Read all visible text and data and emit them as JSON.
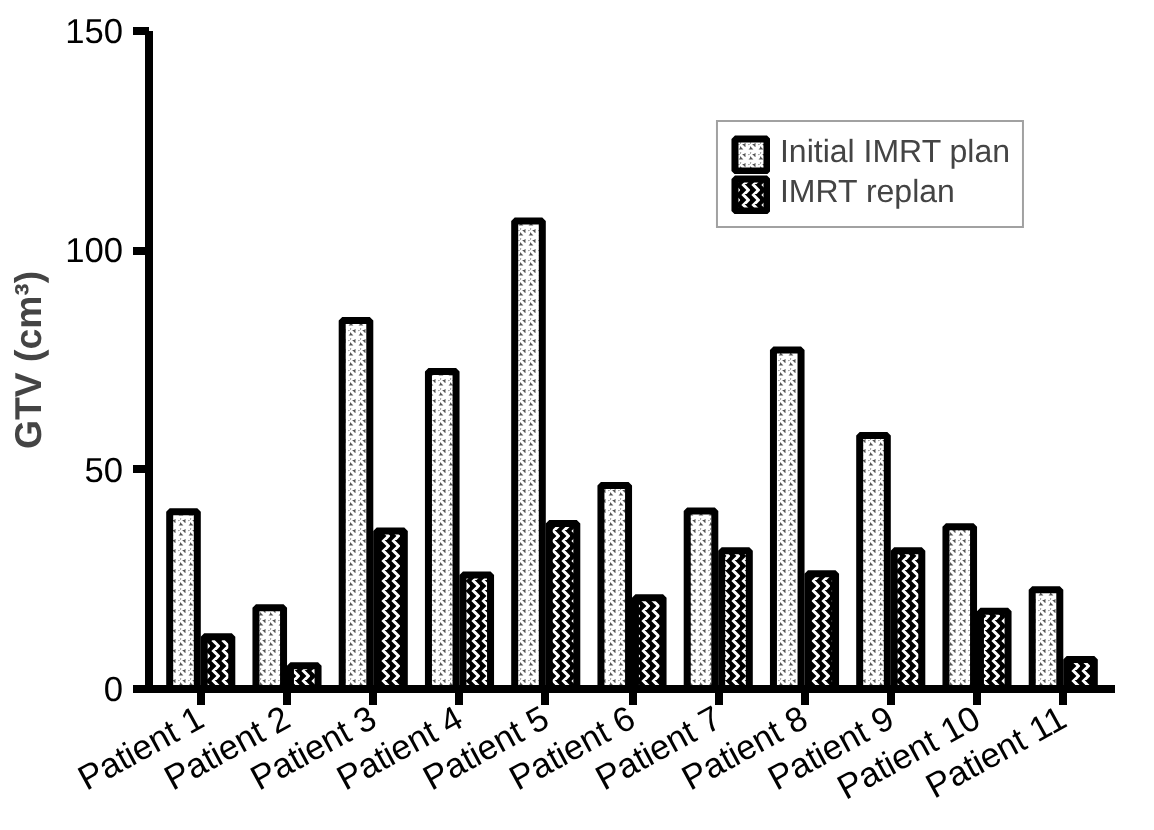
{
  "chart_data": {
    "type": "bar",
    "ylabel": "GTV (cm³)",
    "categories": [
      "Patient 1",
      "Patient 2",
      "Patient 3",
      "Patient 4",
      "Patient 5",
      "Patient 6",
      "Patient 7",
      "Patient 8",
      "Patient 9",
      "Patient 10",
      "Patient 11"
    ],
    "series": [
      {
        "name": "Initial IMRT plan",
        "color": "#555555",
        "values": [
          40.4,
          18.5,
          84,
          72.4,
          106.7,
          46.4,
          40.6,
          77.3,
          57.8,
          37,
          22.6
        ]
      },
      {
        "name": "IMRT replan",
        "color": "#000000",
        "values": [
          11.9,
          5.3,
          36,
          26,
          37.7,
          20.8,
          31.5,
          26.3,
          31.5,
          17.7,
          6.7
        ]
      }
    ],
    "ylim": [
      0,
      150
    ],
    "yticks": [
      0,
      50,
      100,
      150
    ],
    "grid": false,
    "legend": "top right"
  }
}
